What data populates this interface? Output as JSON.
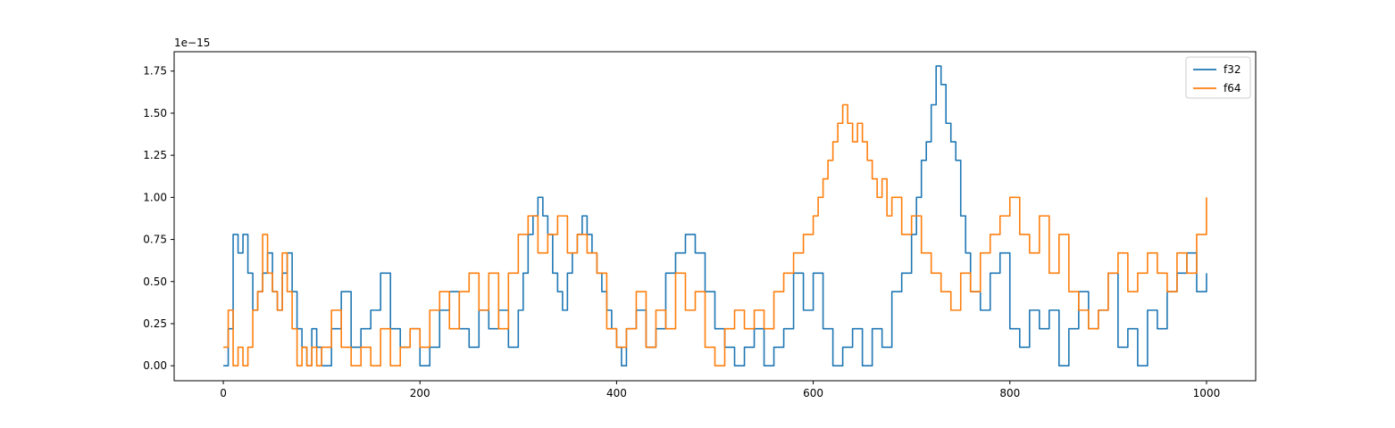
{
  "chart_data": {
    "type": "line",
    "title": "",
    "xlabel": "",
    "ylabel": "",
    "offset_text": "1e−15",
    "xlim": [
      -50,
      1050
    ],
    "ylim": [
      -0.089,
      1.865
    ],
    "xticks": [
      0,
      200,
      400,
      600,
      800,
      1000
    ],
    "xtick_labels": [
      "0",
      "200",
      "400",
      "600",
      "800",
      "1000"
    ],
    "yticks": [
      0.0,
      0.25,
      0.5,
      0.75,
      1.0,
      1.25,
      1.5,
      1.75
    ],
    "ytick_labels": [
      "0.00",
      "0.25",
      "0.50",
      "0.75",
      "1.00",
      "1.25",
      "1.50",
      "1.75"
    ],
    "grid": false,
    "legend_position": "top-right",
    "series": [
      {
        "name": "f32",
        "color": "#1f77b4",
        "x": [
          0,
          5,
          10,
          15,
          20,
          25,
          30,
          35,
          40,
          45,
          50,
          55,
          60,
          65,
          70,
          75,
          80,
          85,
          90,
          95,
          100,
          110,
          120,
          130,
          140,
          150,
          160,
          170,
          180,
          190,
          200,
          210,
          220,
          230,
          240,
          250,
          260,
          270,
          280,
          290,
          300,
          305,
          310,
          315,
          320,
          325,
          330,
          335,
          340,
          345,
          350,
          355,
          360,
          365,
          370,
          375,
          380,
          385,
          390,
          395,
          400,
          405,
          410,
          420,
          430,
          440,
          450,
          460,
          470,
          480,
          490,
          500,
          510,
          520,
          530,
          540,
          550,
          560,
          570,
          580,
          590,
          600,
          610,
          620,
          630,
          640,
          650,
          660,
          670,
          680,
          690,
          700,
          705,
          710,
          715,
          720,
          725,
          730,
          735,
          740,
          745,
          750,
          755,
          760,
          770,
          780,
          790,
          800,
          810,
          820,
          830,
          840,
          850,
          860,
          870,
          880,
          890,
          900,
          910,
          920,
          930,
          940,
          950,
          960,
          970,
          980,
          990,
          1000
        ],
        "values": [
          0.0,
          0.22,
          0.78,
          0.67,
          0.78,
          0.55,
          0.33,
          0.44,
          0.55,
          0.67,
          0.44,
          0.33,
          0.55,
          0.67,
          0.44,
          0.22,
          0.11,
          0.0,
          0.22,
          0.11,
          0.0,
          0.22,
          0.44,
          0.11,
          0.22,
          0.33,
          0.55,
          0.22,
          0.11,
          0.22,
          0.0,
          0.11,
          0.33,
          0.44,
          0.22,
          0.11,
          0.33,
          0.22,
          0.33,
          0.11,
          0.33,
          0.55,
          0.78,
          0.89,
          1.0,
          0.89,
          0.78,
          0.55,
          0.44,
          0.33,
          0.55,
          0.67,
          0.78,
          0.89,
          0.78,
          0.67,
          0.55,
          0.44,
          0.33,
          0.22,
          0.11,
          0.0,
          0.22,
          0.33,
          0.11,
          0.22,
          0.55,
          0.67,
          0.78,
          0.67,
          0.44,
          0.22,
          0.11,
          0.0,
          0.11,
          0.22,
          0.0,
          0.11,
          0.22,
          0.55,
          0.33,
          0.55,
          0.22,
          0.0,
          0.11,
          0.22,
          0.0,
          0.22,
          0.11,
          0.44,
          0.55,
          0.78,
          1.0,
          1.22,
          1.33,
          1.55,
          1.78,
          1.67,
          1.44,
          1.33,
          1.22,
          0.89,
          0.67,
          0.44,
          0.33,
          0.55,
          0.67,
          0.22,
          0.11,
          0.33,
          0.22,
          0.33,
          0.0,
          0.22,
          0.44,
          0.22,
          0.33,
          0.55,
          0.11,
          0.22,
          0.0,
          0.33,
          0.22,
          0.44,
          0.55,
          0.67,
          0.44,
          0.55
        ]
      },
      {
        "name": "f64",
        "color": "#ff7f0e",
        "x": [
          0,
          5,
          10,
          15,
          20,
          25,
          30,
          35,
          40,
          45,
          50,
          55,
          60,
          65,
          70,
          75,
          80,
          85,
          90,
          95,
          100,
          110,
          120,
          130,
          140,
          150,
          160,
          170,
          180,
          190,
          200,
          210,
          220,
          230,
          240,
          250,
          260,
          270,
          280,
          290,
          300,
          310,
          320,
          330,
          340,
          350,
          360,
          370,
          380,
          390,
          400,
          410,
          420,
          430,
          440,
          450,
          460,
          470,
          480,
          490,
          500,
          510,
          520,
          530,
          540,
          550,
          560,
          570,
          580,
          590,
          600,
          605,
          610,
          615,
          620,
          625,
          630,
          635,
          640,
          645,
          650,
          655,
          660,
          665,
          670,
          675,
          680,
          690,
          700,
          710,
          720,
          730,
          740,
          750,
          760,
          770,
          780,
          790,
          800,
          810,
          820,
          830,
          840,
          850,
          860,
          870,
          880,
          890,
          900,
          910,
          920,
          930,
          940,
          950,
          960,
          970,
          980,
          990,
          1000
        ],
        "values": [
          0.11,
          0.33,
          0.0,
          0.11,
          0.0,
          0.11,
          0.33,
          0.44,
          0.78,
          0.55,
          0.44,
          0.33,
          0.67,
          0.44,
          0.22,
          0.0,
          0.11,
          0.0,
          0.11,
          0.0,
          0.11,
          0.33,
          0.11,
          0.0,
          0.11,
          0.0,
          0.22,
          0.0,
          0.11,
          0.22,
          0.11,
          0.33,
          0.44,
          0.22,
          0.44,
          0.55,
          0.33,
          0.55,
          0.22,
          0.55,
          0.78,
          0.89,
          0.67,
          0.78,
          0.89,
          0.67,
          0.78,
          0.67,
          0.55,
          0.22,
          0.11,
          0.22,
          0.44,
          0.11,
          0.33,
          0.22,
          0.55,
          0.33,
          0.44,
          0.11,
          0.0,
          0.22,
          0.33,
          0.22,
          0.33,
          0.22,
          0.44,
          0.55,
          0.67,
          0.78,
          0.89,
          1.0,
          1.11,
          1.22,
          1.33,
          1.44,
          1.55,
          1.44,
          1.33,
          1.44,
          1.33,
          1.22,
          1.11,
          1.0,
          1.11,
          0.89,
          1.0,
          0.78,
          0.89,
          0.67,
          0.55,
          0.44,
          0.33,
          0.55,
          0.44,
          0.67,
          0.78,
          0.89,
          1.0,
          0.78,
          0.67,
          0.89,
          0.55,
          0.78,
          0.44,
          0.33,
          0.22,
          0.33,
          0.55,
          0.67,
          0.44,
          0.55,
          0.67,
          0.55,
          0.44,
          0.67,
          0.55,
          0.78,
          1.0
        ]
      }
    ]
  }
}
